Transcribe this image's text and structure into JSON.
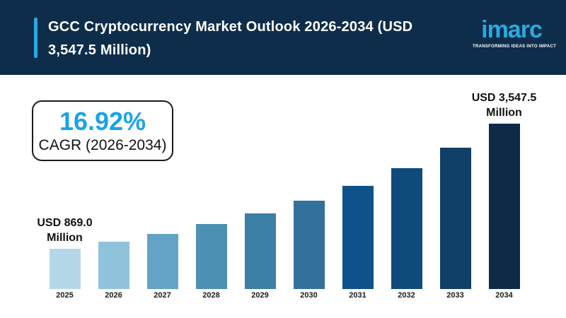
{
  "header": {
    "title_lines": [
      "GCC Cryptocurrency Market Outlook 2026-2034 (USD",
      "3,547.5 Million)"
    ],
    "logo": {
      "text": "imarc",
      "tagline": "TRANSFORMING IDEAS INTO IMPACT"
    },
    "colors": {
      "background": "#0e2d4a",
      "accent": "#2aa9e0",
      "logo_blue": "#2aa9e0"
    }
  },
  "cagr_box": {
    "value": "16.92%",
    "label": "CAGR (2026-2034)",
    "value_color": "#1aa3e8"
  },
  "chart_data": {
    "type": "bar",
    "title": "GCC Cryptocurrency Market Outlook 2026-2034 (USD 3,547.5 Million)",
    "xlabel": "",
    "ylabel": "",
    "unit": "USD Million",
    "categories": [
      "2025",
      "2026",
      "2027",
      "2028",
      "2029",
      "2030",
      "2031",
      "2032",
      "2033",
      "2034"
    ],
    "values": [
      869.0,
      1016.0,
      1188.0,
      1389.0,
      1623.9,
      1898.7,
      2219.9,
      2595.5,
      3034.7,
      3547.5
    ],
    "ylim": [
      0,
      3547.5
    ],
    "grid": false,
    "legend": false,
    "cagr": "16.92% (2026-2034)",
    "bar_colors": [
      "#b5d8e9",
      "#8fc3dc",
      "#63a3c6",
      "#4c90b4",
      "#3b7fa4",
      "#31719b",
      "#0f518a",
      "#0e4a7c",
      "#103f67",
      "#0d2b47"
    ],
    "annotations": [
      {
        "index": 0,
        "lines": [
          "USD 869.0",
          "Million"
        ],
        "text": "USD 869.0 Million"
      },
      {
        "index": 9,
        "lines": [
          "USD 3,547.5",
          "Million"
        ],
        "text": "USD 3,547.5 Million"
      }
    ]
  }
}
